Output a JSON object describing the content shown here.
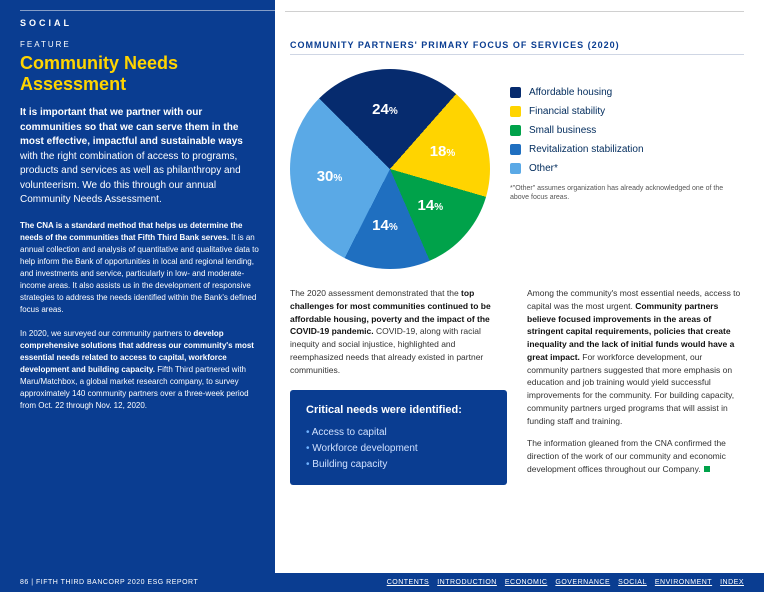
{
  "header": {
    "section": "SOCIAL"
  },
  "left": {
    "feature": "FEATURE",
    "title": "Community Needs Assessment",
    "intro_bold": "It is important that we partner with our communities so that we can serve them in the most effective, impactful and sustainable ways",
    "intro_rest": " with the right combination of access to programs, products and services as well as philanthropy and volunteerism. We do this through our annual Community Needs Assessment.",
    "p2_bold": "The CNA is a standard method that helps us determine the needs of the communities that Fifth Third Bank serves.",
    "p2_rest": " It is an annual collection and analysis of quantitative and qualitative data to help inform the Bank of opportunities in local and regional lending, and investments and service, particularly in low- and moderate-income areas. It also assists us in the development of responsive strategies to address the needs identified within the Bank's defined focus areas.",
    "p3_pre": "In 2020, we surveyed our community partners to ",
    "p3_bold": "develop comprehensive solutions that address our community's most essential needs related to access to capital, workforce development and building capacity.",
    "p3_rest": " Fifth Third partnered with Maru/Matchbox, a global market research company, to survey approximately 140 community partners over a three-week period from Oct. 22 through Nov. 12, 2020."
  },
  "chart": {
    "title": "COMMUNITY PARTNERS' PRIMARY FOCUS OF SERVICES (2020)",
    "type": "pie",
    "slices": [
      {
        "label": "Affordable housing",
        "value": 24,
        "color": "#062b6e"
      },
      {
        "label": "Financial stability",
        "value": 18,
        "color": "#ffd400"
      },
      {
        "label": "Small business",
        "value": 14,
        "color": "#00a24a"
      },
      {
        "label": "Revitalization stabilization",
        "value": 14,
        "color": "#1f6fc0"
      },
      {
        "label": "Other*",
        "value": 30,
        "color": "#5aa9e6"
      }
    ],
    "label_fontsize": 15,
    "label_color": "#ffffff",
    "note": "*\"Other\" assumes organization has already acknowledged one of the above focus areas."
  },
  "body": {
    "col1_pre": "The 2020 assessment demonstrated that the ",
    "col1_bold": "top challenges for most communities continued to be affordable housing, poverty and the impact of the COVID-19 pandemic.",
    "col1_rest": " COVID-19, along with racial inequity and social injustice, highlighted and reemphasized needs that already existed in partner communities.",
    "callout_title": "Critical needs were identified:",
    "callout_items": [
      "Access to capital",
      "Workforce development",
      "Building capacity"
    ],
    "col2_p1_pre": "Among the community's most essential needs, access to capital was the most urgent. ",
    "col2_p1_bold": "Community partners believe focused improvements in the areas of stringent capital requirements, policies that create inequality and the lack of initial funds would have a great impact.",
    "col2_p1_rest": " For workforce development, our community partners suggested that more emphasis on education and job training would yield successful improvements for the community. For building capacity, community partners urged programs that will assist in funding staff and training.",
    "col2_p2": "The information gleaned from the CNA confirmed the direction of the work of our community and economic development offices throughout our Company."
  },
  "footer": {
    "page": "86",
    "doc": "FIFTH THIRD BANCORP 2020 ESG REPORT",
    "links": [
      "CONTENTS",
      "INTRODUCTION",
      "ECONOMIC",
      "GOVERNANCE",
      "SOCIAL",
      "ENVIRONMENT",
      "INDEX"
    ]
  },
  "style": {
    "blue": "#0a3d91",
    "yellow": "#ffd400",
    "green": "#00a24a",
    "lightblue": "#5aa9e6",
    "midblue": "#1f6fc0",
    "darkblue": "#062b6e"
  }
}
